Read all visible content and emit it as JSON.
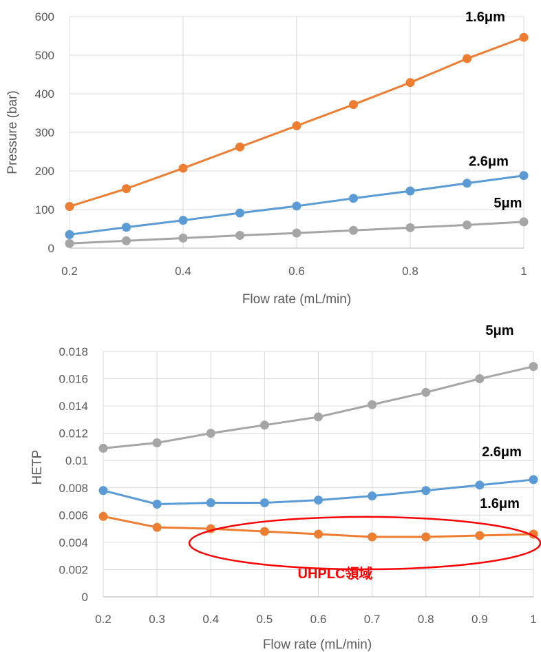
{
  "chart_data": [
    {
      "type": "line",
      "xlabel": "Flow rate (mL/min)",
      "ylabel": "Pressure (bar)",
      "xlim": [
        0.2,
        1
      ],
      "ylim": [
        0,
        600
      ],
      "x_ticks": [
        "0.2",
        "0.4",
        "0.6",
        "0.8",
        "1"
      ],
      "y_ticks": [
        "0",
        "100",
        "200",
        "300",
        "400",
        "500",
        "600"
      ],
      "grid": true,
      "x": [
        0.2,
        0.3,
        0.4,
        0.5,
        0.6,
        0.7,
        0.8,
        0.9,
        1.0
      ],
      "series": [
        {
          "name": "1.6μm",
          "color": "#ED7D31",
          "values": [
            108,
            154,
            207,
            262,
            317,
            372,
            429,
            491,
            546
          ]
        },
        {
          "name": "2.6μm",
          "color": "#5B9BD5",
          "values": [
            35,
            54,
            72,
            91,
            109,
            129,
            148,
            168,
            188
          ]
        },
        {
          "name": "5μm",
          "color": "#A5A5A5",
          "values": [
            12,
            19,
            26,
            33,
            39,
            46,
            53,
            60,
            68
          ]
        }
      ]
    },
    {
      "type": "line",
      "xlabel": "Flow rate (mL/min)",
      "ylabel": "HETP",
      "xlim": [
        0.2,
        1
      ],
      "ylim": [
        0,
        0.018
      ],
      "x_ticks": [
        "0.2",
        "0.3",
        "0.4",
        "0.5",
        "0.6",
        "0.7",
        "0.8",
        "0.9",
        "1"
      ],
      "y_ticks": [
        "0",
        "0.002",
        "0.004",
        "0.006",
        "0.008",
        "0.01",
        "0.012",
        "0.014",
        "0.016",
        "0.018"
      ],
      "grid": true,
      "x": [
        0.2,
        0.3,
        0.4,
        0.5,
        0.6,
        0.7,
        0.8,
        0.9,
        1.0
      ],
      "series": [
        {
          "name": "5μm",
          "color": "#A5A5A5",
          "values": [
            0.0109,
            0.0113,
            0.012,
            0.0126,
            0.0132,
            0.0141,
            0.015,
            0.016,
            0.0169
          ]
        },
        {
          "name": "2.6μm",
          "color": "#5B9BD5",
          "values": [
            0.0078,
            0.0068,
            0.0069,
            0.0069,
            0.0071,
            0.0074,
            0.0078,
            0.0082,
            0.0086
          ]
        },
        {
          "name": "1.6μm",
          "color": "#ED7D31",
          "values": [
            0.0059,
            0.0051,
            0.005,
            0.0048,
            0.0046,
            0.0044,
            0.0044,
            0.0045,
            0.0046
          ]
        }
      ],
      "annotation": {
        "text": "UHPLC領域",
        "color": "#FF0000"
      }
    }
  ]
}
